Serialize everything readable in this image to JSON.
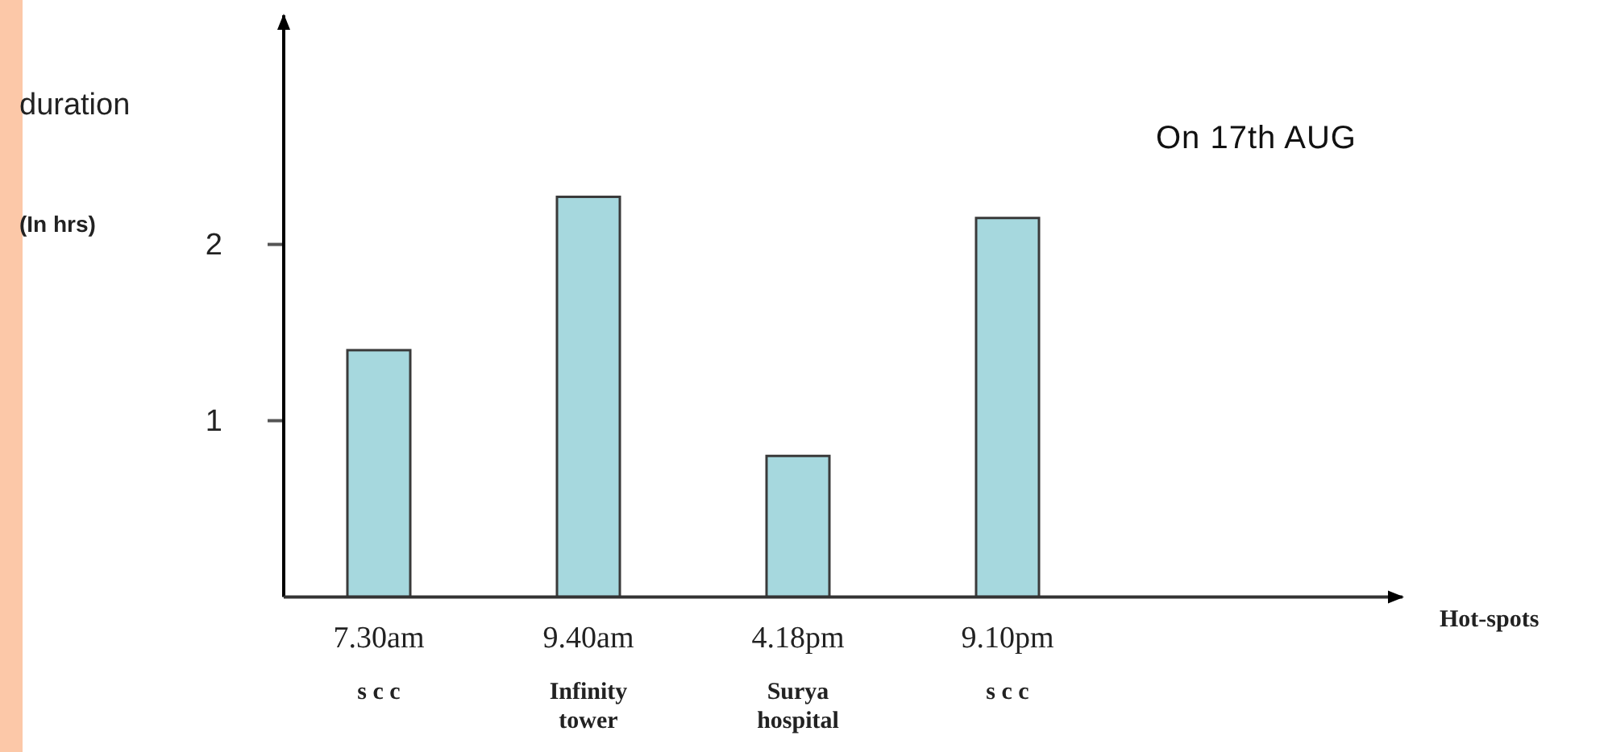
{
  "chart_data": {
    "type": "bar",
    "title": "On 17th AUG",
    "ylabel": "duration\n(In hrs)",
    "annotations": [
      "Hot-spots"
    ],
    "categories": [
      "7.30am\ns c c",
      "9.40am\nInfinity\ntower",
      "4.18pm\nSurya\nhospital",
      "9.10pm\ns c c"
    ],
    "values": [
      1.4,
      2.27,
      0.8,
      2.15
    ],
    "color": "#a6d8de",
    "ylim": [
      0,
      3.3
    ],
    "yticks": [
      1,
      2
    ],
    "grid": false
  }
}
